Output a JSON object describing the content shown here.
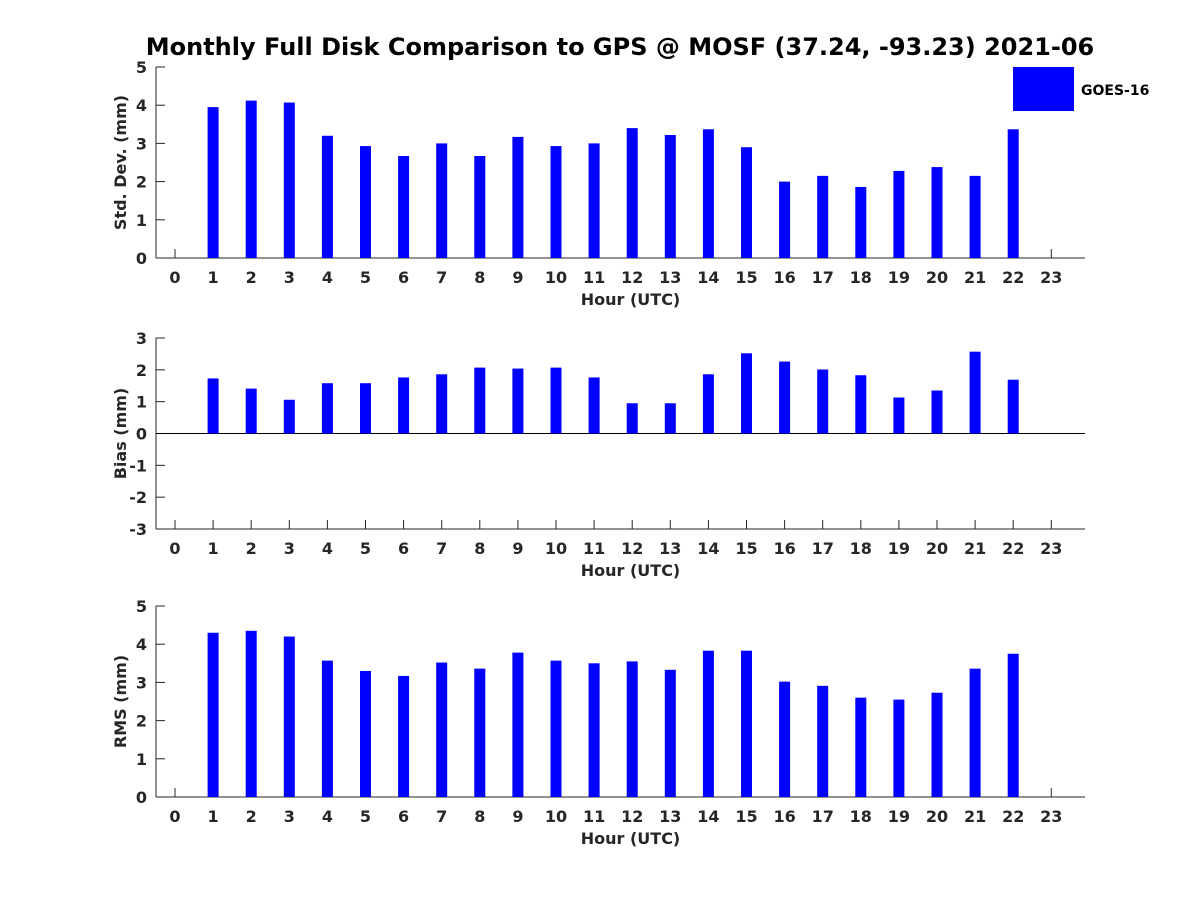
{
  "title": "Monthly Full Disk Comparison to GPS @ MOSF (37.24, -93.23) 2021-06",
  "legend": {
    "label": "GOES-16",
    "color": "#0000ff",
    "placement": "top-right"
  },
  "chart_data": [
    {
      "type": "bar",
      "ylabel": "Std. Dev. (mm)",
      "xlabel": "Hour (UTC)",
      "ylim": [
        0,
        5
      ],
      "yticks": [
        0,
        1,
        2,
        3,
        4,
        5
      ],
      "x": [
        0,
        1,
        2,
        3,
        4,
        5,
        6,
        7,
        8,
        9,
        10,
        11,
        12,
        13,
        14,
        15,
        16,
        17,
        18,
        19,
        20,
        21,
        22,
        23
      ],
      "values": [
        null,
        3.95,
        4.12,
        4.07,
        3.2,
        2.93,
        2.67,
        3.0,
        2.67,
        3.17,
        2.93,
        3.0,
        3.4,
        3.22,
        3.37,
        2.9,
        2.0,
        2.15,
        1.86,
        2.28,
        2.38,
        2.15,
        3.37,
        null
      ]
    },
    {
      "type": "bar",
      "ylabel": "Bias (mm)",
      "xlabel": "Hour (UTC)",
      "ylim": [
        -3,
        3
      ],
      "yticks": [
        -3,
        -2,
        -1,
        0,
        1,
        2,
        3
      ],
      "x": [
        0,
        1,
        2,
        3,
        4,
        5,
        6,
        7,
        8,
        9,
        10,
        11,
        12,
        13,
        14,
        15,
        16,
        17,
        18,
        19,
        20,
        21,
        22,
        23
      ],
      "values": [
        null,
        1.73,
        1.41,
        1.06,
        1.58,
        1.58,
        1.76,
        1.86,
        2.07,
        2.04,
        2.07,
        1.76,
        0.95,
        0.95,
        1.86,
        2.52,
        2.26,
        2.01,
        1.83,
        1.13,
        1.35,
        2.57,
        1.69,
        null
      ]
    },
    {
      "type": "bar",
      "ylabel": "RMS (mm)",
      "xlabel": "Hour (UTC)",
      "ylim": [
        0,
        5
      ],
      "yticks": [
        0,
        1,
        2,
        3,
        4,
        5
      ],
      "x": [
        0,
        1,
        2,
        3,
        4,
        5,
        6,
        7,
        8,
        9,
        10,
        11,
        12,
        13,
        14,
        15,
        16,
        17,
        18,
        19,
        20,
        21,
        22,
        23
      ],
      "values": [
        null,
        4.3,
        4.35,
        4.2,
        3.57,
        3.3,
        3.17,
        3.52,
        3.36,
        3.78,
        3.57,
        3.5,
        3.55,
        3.33,
        3.83,
        3.83,
        3.02,
        2.91,
        2.6,
        2.55,
        2.73,
        3.36,
        3.75,
        null
      ]
    }
  ]
}
